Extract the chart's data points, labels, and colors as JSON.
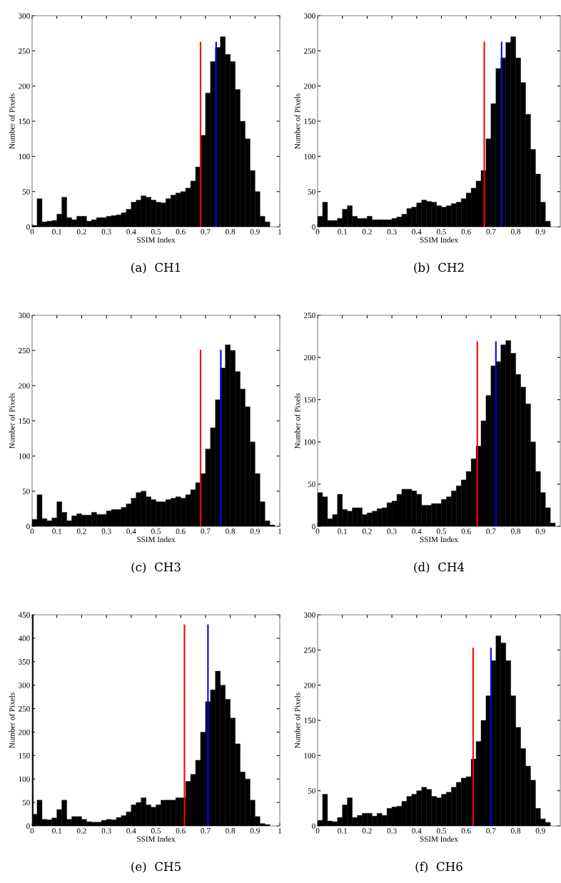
{
  "chart_data": [
    {
      "type": "histogram",
      "title": "(a)  CH1",
      "xlabel": "SSIM Index",
      "ylabel": "Number of Pixels",
      "color": "#000000",
      "xlim": [
        0,
        1
      ],
      "ylim": [
        0,
        300
      ],
      "xticks": [
        0,
        0.1,
        0.2,
        0.3,
        0.4,
        0.5,
        0.6,
        0.7,
        0.8,
        0.9,
        1
      ],
      "yticks": [
        0,
        50,
        100,
        150,
        200,
        250,
        300
      ],
      "grid": false,
      "bins": [
        0,
        0.02,
        0.04,
        0.06,
        0.08,
        0.1,
        0.12,
        0.14,
        0.16,
        0.18,
        0.2,
        0.22,
        0.24,
        0.26,
        0.28,
        0.3,
        0.32,
        0.34,
        0.36,
        0.38,
        0.4,
        0.42,
        0.44,
        0.46,
        0.48,
        0.5,
        0.52,
        0.54,
        0.56,
        0.58,
        0.6,
        0.62,
        0.64,
        0.66,
        0.68,
        0.7,
        0.72,
        0.74,
        0.76,
        0.78,
        0.8,
        0.82,
        0.84,
        0.86,
        0.88,
        0.9,
        0.92,
        0.94,
        0.96
      ],
      "values": [
        2,
        40,
        7,
        8,
        9,
        18,
        42,
        13,
        10,
        15,
        15,
        8,
        10,
        13,
        13,
        15,
        16,
        17,
        20,
        25,
        35,
        38,
        44,
        42,
        38,
        35,
        34,
        40,
        45,
        48,
        50,
        55,
        65,
        85,
        130,
        190,
        235,
        255,
        270,
        245,
        235,
        195,
        150,
        125,
        80,
        50,
        15,
        7
      ],
      "series": [
        {
          "type": "line",
          "color": "#ff0000",
          "x": [
            0.68,
            0.68
          ],
          "values": [
            0,
            262
          ]
        },
        {
          "type": "line",
          "color": "#0000ff",
          "x": [
            0.743,
            0.743
          ],
          "values": [
            0,
            262
          ]
        }
      ]
    },
    {
      "type": "histogram",
      "title": "(b)  CH2",
      "xlabel": "SSIM Index",
      "ylabel": "Number of Pixels",
      "color": "#000000",
      "xlim": [
        0,
        0.98
      ],
      "ylim": [
        0,
        300
      ],
      "xticks": [
        0,
        0.1,
        0.2,
        0.3,
        0.4,
        0.5,
        0.6,
        0.7,
        0.8,
        0.9
      ],
      "yticks": [
        0,
        50,
        100,
        150,
        200,
        250,
        300
      ],
      "grid": false,
      "bins": [
        0,
        0.02,
        0.04,
        0.06,
        0.08,
        0.1,
        0.12,
        0.14,
        0.16,
        0.18,
        0.2,
        0.22,
        0.24,
        0.26,
        0.28,
        0.3,
        0.32,
        0.34,
        0.36,
        0.38,
        0.4,
        0.42,
        0.44,
        0.46,
        0.48,
        0.5,
        0.52,
        0.54,
        0.56,
        0.58,
        0.6,
        0.62,
        0.64,
        0.66,
        0.68,
        0.7,
        0.72,
        0.74,
        0.76,
        0.78,
        0.8,
        0.82,
        0.84,
        0.86,
        0.88,
        0.9,
        0.92,
        0.94
      ],
      "values": [
        15,
        35,
        9,
        9,
        12,
        25,
        30,
        15,
        12,
        12,
        15,
        10,
        10,
        10,
        10,
        12,
        14,
        18,
        26,
        28,
        34,
        38,
        36,
        35,
        30,
        28,
        30,
        33,
        35,
        40,
        48,
        55,
        65,
        80,
        125,
        175,
        225,
        240,
        262,
        270,
        240,
        205,
        160,
        110,
        75,
        35,
        8
      ],
      "series": [
        {
          "type": "line",
          "color": "#ff0000",
          "x": [
            0.673,
            0.673
          ],
          "values": [
            0,
            262
          ]
        },
        {
          "type": "line",
          "color": "#0000ff",
          "x": [
            0.743,
            0.743
          ],
          "values": [
            0,
            262
          ]
        }
      ]
    },
    {
      "type": "histogram",
      "title": "(c)  CH3",
      "xlabel": "SSIM Index",
      "ylabel": "Number of Pixels",
      "color": "#000000",
      "xlim": [
        0,
        1
      ],
      "ylim": [
        0,
        300
      ],
      "xticks": [
        0,
        0.1,
        0.2,
        0.3,
        0.4,
        0.5,
        0.6,
        0.7,
        0.8,
        0.9,
        1
      ],
      "yticks": [
        0,
        50,
        100,
        150,
        200,
        250,
        300
      ],
      "grid": false,
      "bins": [
        0,
        0.02,
        0.04,
        0.06,
        0.08,
        0.1,
        0.12,
        0.14,
        0.16,
        0.18,
        0.2,
        0.22,
        0.24,
        0.26,
        0.28,
        0.3,
        0.32,
        0.34,
        0.36,
        0.38,
        0.4,
        0.42,
        0.44,
        0.46,
        0.48,
        0.5,
        0.52,
        0.54,
        0.56,
        0.58,
        0.6,
        0.62,
        0.64,
        0.66,
        0.68,
        0.7,
        0.72,
        0.74,
        0.76,
        0.78,
        0.8,
        0.82,
        0.84,
        0.86,
        0.88,
        0.9,
        0.92,
        0.94,
        0.96,
        0.98
      ],
      "values": [
        10,
        45,
        11,
        8,
        12,
        35,
        20,
        8,
        15,
        18,
        16,
        16,
        20,
        17,
        17,
        22,
        24,
        24,
        27,
        32,
        40,
        48,
        50,
        42,
        38,
        35,
        35,
        38,
        40,
        42,
        40,
        45,
        52,
        62,
        75,
        110,
        140,
        180,
        225,
        258,
        250,
        220,
        195,
        170,
        120,
        75,
        35,
        8,
        2
      ],
      "series": [
        {
          "type": "line",
          "color": "#ff0000",
          "x": [
            0.68,
            0.68
          ],
          "values": [
            0,
            250
          ]
        },
        {
          "type": "line",
          "color": "#0000ff",
          "x": [
            0.762,
            0.762
          ],
          "values": [
            0,
            250
          ]
        }
      ]
    },
    {
      "type": "histogram",
      "title": "(d)  CH4",
      "xlabel": "SSIM Index",
      "ylabel": "Number of Pixels",
      "color": "#000000",
      "xlim": [
        0,
        0.98
      ],
      "ylim": [
        0,
        250
      ],
      "xticks": [
        0,
        0.1,
        0.2,
        0.3,
        0.4,
        0.5,
        0.6,
        0.7,
        0.8,
        0.9
      ],
      "yticks": [
        0,
        50,
        100,
        150,
        200,
        250
      ],
      "grid": false,
      "bins": [
        0,
        0.02,
        0.04,
        0.06,
        0.08,
        0.1,
        0.12,
        0.14,
        0.16,
        0.18,
        0.2,
        0.22,
        0.24,
        0.26,
        0.28,
        0.3,
        0.32,
        0.34,
        0.36,
        0.38,
        0.4,
        0.42,
        0.44,
        0.46,
        0.48,
        0.5,
        0.52,
        0.54,
        0.56,
        0.58,
        0.6,
        0.62,
        0.64,
        0.66,
        0.68,
        0.7,
        0.72,
        0.74,
        0.76,
        0.78,
        0.8,
        0.82,
        0.84,
        0.86,
        0.88,
        0.9,
        0.92,
        0.94,
        0.96
      ],
      "values": [
        40,
        35,
        9,
        14,
        38,
        20,
        18,
        22,
        22,
        14,
        16,
        18,
        21,
        22,
        28,
        30,
        38,
        44,
        44,
        42,
        38,
        25,
        25,
        27,
        27,
        32,
        35,
        42,
        48,
        55,
        65,
        80,
        95,
        125,
        155,
        190,
        195,
        215,
        220,
        205,
        180,
        165,
        145,
        100,
        65,
        40,
        22,
        4
      ],
      "series": [
        {
          "type": "line",
          "color": "#ff0000",
          "x": [
            0.645,
            0.645
          ],
          "values": [
            0,
            218
          ]
        },
        {
          "type": "line",
          "color": "#0000ff",
          "x": [
            0.72,
            0.72
          ],
          "values": [
            0,
            218
          ]
        }
      ]
    },
    {
      "type": "histogram",
      "title": "(e)  CH5",
      "xlabel": "SSIM Index",
      "ylabel": "Number of Pixels",
      "color": "#000000",
      "xlim": [
        0,
        1
      ],
      "ylim": [
        0,
        450
      ],
      "xticks": [
        0,
        0.1,
        0.2,
        0.3,
        0.4,
        0.5,
        0.6,
        0.7,
        0.8,
        0.9,
        1
      ],
      "yticks": [
        0,
        50,
        100,
        150,
        200,
        250,
        300,
        350,
        400,
        450
      ],
      "grid": false,
      "bins": [
        0,
        0.005,
        0.02,
        0.04,
        0.06,
        0.08,
        0.1,
        0.12,
        0.14,
        0.16,
        0.18,
        0.2,
        0.22,
        0.24,
        0.26,
        0.28,
        0.3,
        0.32,
        0.34,
        0.36,
        0.38,
        0.4,
        0.42,
        0.44,
        0.46,
        0.48,
        0.5,
        0.52,
        0.54,
        0.56,
        0.58,
        0.6,
        0.62,
        0.64,
        0.66,
        0.68,
        0.7,
        0.72,
        0.74,
        0.76,
        0.78,
        0.8,
        0.82,
        0.84,
        0.86,
        0.88,
        0.9,
        0.92,
        0.94,
        0.96
      ],
      "values": [
        450,
        25,
        55,
        14,
        13,
        17,
        35,
        55,
        14,
        20,
        20,
        14,
        9,
        8,
        8,
        12,
        14,
        13,
        18,
        22,
        30,
        45,
        50,
        60,
        45,
        40,
        45,
        55,
        55,
        55,
        60,
        60,
        95,
        110,
        140,
        200,
        265,
        290,
        330,
        300,
        270,
        230,
        175,
        115,
        100,
        55,
        20,
        5,
        3
      ],
      "series": [
        {
          "type": "line",
          "color": "#ff0000",
          "x": [
            0.615,
            0.615
          ],
          "values": [
            0,
            428
          ]
        },
        {
          "type": "line",
          "color": "#0000ff",
          "x": [
            0.71,
            0.71
          ],
          "values": [
            0,
            428
          ]
        }
      ]
    },
    {
      "type": "histogram",
      "title": "(f)  CH6",
      "xlabel": "SSIM Index",
      "ylabel": "Number of Pixels",
      "color": "#000000",
      "xlim": [
        0,
        0.98
      ],
      "ylim": [
        0,
        300
      ],
      "xticks": [
        0,
        0.1,
        0.2,
        0.3,
        0.4,
        0.5,
        0.6,
        0.7,
        0.8,
        0.9
      ],
      "yticks": [
        0,
        50,
        100,
        150,
        200,
        250,
        300
      ],
      "grid": false,
      "bins": [
        0,
        0.02,
        0.04,
        0.06,
        0.08,
        0.1,
        0.12,
        0.14,
        0.16,
        0.18,
        0.2,
        0.22,
        0.24,
        0.26,
        0.28,
        0.3,
        0.32,
        0.34,
        0.36,
        0.38,
        0.4,
        0.42,
        0.44,
        0.46,
        0.48,
        0.5,
        0.52,
        0.54,
        0.56,
        0.58,
        0.6,
        0.62,
        0.64,
        0.66,
        0.68,
        0.7,
        0.72,
        0.74,
        0.76,
        0.78,
        0.8,
        0.82,
        0.84,
        0.86,
        0.88,
        0.9,
        0.92,
        0.94
      ],
      "values": [
        8,
        45,
        7,
        6,
        12,
        30,
        40,
        12,
        15,
        18,
        18,
        14,
        18,
        15,
        25,
        27,
        28,
        35,
        42,
        45,
        50,
        55,
        52,
        42,
        40,
        45,
        48,
        55,
        62,
        68,
        70,
        95,
        120,
        150,
        185,
        235,
        270,
        260,
        235,
        185,
        140,
        110,
        85,
        65,
        25,
        10,
        5
      ],
      "series": [
        {
          "type": "line",
          "color": "#ff0000",
          "x": [
            0.628,
            0.628
          ],
          "values": [
            0,
            252
          ]
        },
        {
          "type": "line",
          "color": "#0000ff",
          "x": [
            0.7,
            0.7
          ],
          "values": [
            0,
            252
          ]
        }
      ]
    }
  ]
}
